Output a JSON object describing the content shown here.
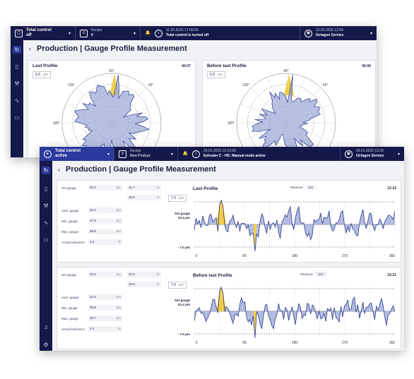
{
  "back": {
    "topbar": {
      "control_line1": "Total control",
      "control_line2": "off",
      "recipe_label": "Recipe",
      "recipe_value": "0",
      "notify_time": "11.02.2025 17:06:50",
      "notify_text": "Total control is turned off",
      "user_time": "12.02.2025 12:54",
      "user_name": "Octagon Service"
    },
    "page_title": "Production | Gauge Profile Measurement",
    "panels": [
      {
        "title": "Last Profile",
        "time": "00:07",
        "input_value": "6.0",
        "input_unit": "μm"
      },
      {
        "title": "Before last Profile",
        "time": "00:06",
        "input_value": "6.0",
        "input_unit": "μm"
      }
    ],
    "polar_labels": [
      "90°",
      "135°",
      "45°",
      "180°"
    ]
  },
  "front": {
    "topbar": {
      "control_line1": "Total control",
      "control_line2": "active",
      "recipe_label": "Recipe",
      "recipe_value": "New Product",
      "notify_time": "29.01.2025 12:13:00",
      "notify_text": "Extruder C - HK: Manual mode active",
      "user_time": "29.01.2025 12:23",
      "user_name": "Octagon Service"
    },
    "page_title": "Production | Gauge Profile Measurement",
    "fields": {
      "set_gauge": "Set gauge",
      "aver_gauge": "Aver. gauge",
      "min_gauge": "Min. gauge",
      "max_gauge": "Max. gauge",
      "actual_tolerance": "Actual tolerance",
      "unit_um": "μm",
      "unit_pct": "%"
    },
    "panels": [
      {
        "set_gauge": "43.4",
        "tol_top": "11.7",
        "tol_bot": "15.0",
        "aver": "43.4",
        "min": "37.8",
        "max": "48.5",
        "tol": "4.3",
        "chart_title": "Last Profile",
        "measure_label": "Measure",
        "measure_value": "162",
        "time": "12:22",
        "input_value": "7.0",
        "input_unit": "μm",
        "ylab_set": "Set gauge",
        "ylab_val": "43.4 μm",
        "ylab_top": "+ 7.0 μm",
        "ylab_bot": "- 7.0 μm"
      },
      {
        "set_gauge": "43.4",
        "tol_top": "12.2",
        "tol_bot": "15.0",
        "aver": "43.4",
        "min": "38.6",
        "max": "48.7",
        "tol": "4.1",
        "chart_title": "Before last Profile",
        "measure_label": "Measure",
        "measure_value": "161",
        "time": "12:21",
        "input_value": "7.0",
        "input_unit": "μm",
        "ylab_set": "Set gauge",
        "ylab_val": "43.4 μm",
        "ylab_top": "+ 7.0 μm",
        "ylab_bot": "- 7.0 μm"
      }
    ],
    "x_ticks": [
      "0",
      "90",
      "180",
      "270",
      "360"
    ]
  },
  "colors": {
    "navy": "#15194a",
    "accent": "#2b3a9c",
    "fill": "#9aa5d6",
    "line": "#2b3a8f",
    "highlight": "#f2cf4a"
  }
}
